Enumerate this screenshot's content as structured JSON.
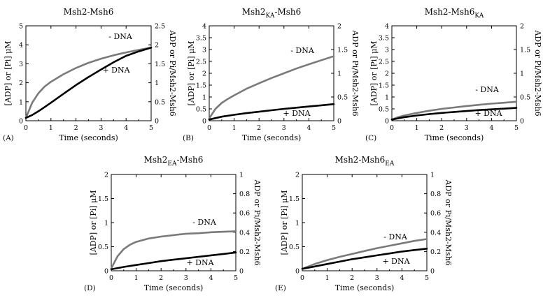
{
  "chart_data": [
    {
      "type": "line",
      "panel_label": "(A)",
      "title": {
        "main": "Msh2-Msh6",
        "sub": "",
        "suffix": ""
      },
      "xlabel": "Time (seconds)",
      "ylabel": "[ADP] or [Pi] μM",
      "y2label": "ADP or Pi/Msh2-Msh6",
      "xlim": [
        0,
        5
      ],
      "ylim": [
        0,
        5
      ],
      "y2lim": [
        0,
        2.5
      ],
      "xticks": [
        "0",
        "1",
        "2",
        "3",
        "4",
        "5"
      ],
      "yticks": [
        "0",
        "1",
        "2",
        "3",
        "4",
        "5"
      ],
      "y2ticks": [
        "0",
        "0.5",
        "1",
        "1.5",
        "2",
        "2.5"
      ],
      "series": [
        {
          "name": "- DNA",
          "color": "#7a7a7a",
          "x": [
            0,
            0.25,
            0.5,
            0.75,
            1,
            1.5,
            2,
            2.5,
            3,
            3.5,
            4,
            4.5,
            5
          ],
          "y": [
            0.15,
            0.95,
            1.45,
            1.8,
            2.05,
            2.45,
            2.78,
            3.05,
            3.27,
            3.45,
            3.6,
            3.73,
            3.85
          ]
        },
        {
          "name": "+ DNA",
          "color": "#000000",
          "x": [
            0,
            0.25,
            0.5,
            0.75,
            1,
            1.5,
            2,
            2.5,
            3,
            3.5,
            4,
            4.5,
            5
          ],
          "y": [
            0.15,
            0.3,
            0.5,
            0.72,
            0.95,
            1.42,
            1.88,
            2.3,
            2.7,
            3.08,
            3.42,
            3.65,
            3.85
          ]
        }
      ]
    },
    {
      "type": "line",
      "panel_label": "(B)",
      "title": {
        "main": "Msh2",
        "sub": "KA",
        "suffix": "-Msh6"
      },
      "xlabel": "Time (seconds)",
      "ylabel": "[ADP] or [Pi] μM",
      "y2label": "ADP or Pi/Msh2-Msh6",
      "xlim": [
        0,
        5
      ],
      "ylim": [
        0,
        4
      ],
      "y2lim": [
        0,
        2
      ],
      "xticks": [
        "0",
        "1",
        "2",
        "3",
        "4",
        "5"
      ],
      "yticks": [
        "0",
        "0.5",
        "1",
        "1.5",
        "2",
        "2.5",
        "3",
        "3.5",
        "4"
      ],
      "y2ticks": [
        "0",
        "0.5",
        "1",
        "1.5",
        "2"
      ],
      "series": [
        {
          "name": "- DNA",
          "color": "#7a7a7a",
          "x": [
            0,
            0.25,
            0.5,
            0.75,
            1,
            1.5,
            2,
            2.5,
            3,
            3.5,
            4,
            4.5,
            5
          ],
          "y": [
            0.1,
            0.5,
            0.75,
            0.92,
            1.07,
            1.35,
            1.58,
            1.8,
            2.0,
            2.2,
            2.38,
            2.55,
            2.72
          ]
        },
        {
          "name": "+ DNA",
          "color": "#000000",
          "x": [
            0,
            0.5,
            1,
            1.5,
            2,
            2.5,
            3,
            3.5,
            4,
            4.5,
            5
          ],
          "y": [
            0.05,
            0.17,
            0.25,
            0.32,
            0.38,
            0.44,
            0.5,
            0.55,
            0.6,
            0.65,
            0.7
          ]
        }
      ]
    },
    {
      "type": "line",
      "panel_label": "(C)",
      "title": {
        "main": "Msh2-Msh6",
        "sub": "KA",
        "suffix": ""
      },
      "xlabel": "Time (seconds)",
      "ylabel": "[ADP] or [Pi] μM",
      "y2label": "ADP or Pi/Msh2-Msh6",
      "xlim": [
        0,
        5
      ],
      "ylim": [
        0,
        4
      ],
      "y2lim": [
        0,
        2
      ],
      "xticks": [
        "0",
        "1",
        "2",
        "3",
        "4",
        "5"
      ],
      "yticks": [
        "0",
        "0.5",
        "1",
        "1.5",
        "2",
        "2.5",
        "3",
        "3.5",
        "4"
      ],
      "y2ticks": [
        "0",
        "0.5",
        "1",
        "1.5",
        "2"
      ],
      "series": [
        {
          "name": "- DNA",
          "color": "#7a7a7a",
          "x": [
            0,
            0.25,
            0.5,
            1,
            1.5,
            2,
            2.5,
            3,
            3.5,
            4,
            4.5,
            5
          ],
          "y": [
            0.05,
            0.15,
            0.22,
            0.33,
            0.42,
            0.5,
            0.56,
            0.62,
            0.67,
            0.72,
            0.76,
            0.8
          ]
        },
        {
          "name": "+ DNA",
          "color": "#000000",
          "x": [
            0,
            0.25,
            0.5,
            1,
            1.5,
            2,
            2.5,
            3,
            3.5,
            4,
            4.5,
            5
          ],
          "y": [
            0.05,
            0.1,
            0.15,
            0.22,
            0.28,
            0.33,
            0.37,
            0.41,
            0.45,
            0.48,
            0.51,
            0.54
          ]
        }
      ]
    },
    {
      "type": "line",
      "panel_label": "(D)",
      "title": {
        "main": "Msh2",
        "sub": "EA",
        "suffix": "-Msh6"
      },
      "xlabel": "Time (seconds)",
      "ylabel": "[ADP] or [Pi] μM",
      "y2label": "ADP or Pi/Msh2-Msh6",
      "xlim": [
        0,
        5
      ],
      "ylim": [
        0,
        2
      ],
      "y2lim": [
        0,
        1
      ],
      "xticks": [
        "0",
        "1",
        "2",
        "3",
        "4",
        "5"
      ],
      "yticks": [
        "0",
        "0.5",
        "1",
        "1.5",
        "2"
      ],
      "y2ticks": [
        "0",
        "0.2",
        "0.4",
        "0.6",
        "0.8",
        "1"
      ],
      "series": [
        {
          "name": "- DNA",
          "color": "#7a7a7a",
          "x": [
            0,
            0.25,
            0.5,
            0.75,
            1,
            1.5,
            2,
            2.5,
            3,
            3.5,
            4,
            4.5,
            5
          ],
          "y": [
            0.05,
            0.3,
            0.45,
            0.54,
            0.6,
            0.67,
            0.71,
            0.74,
            0.77,
            0.78,
            0.8,
            0.81,
            0.82
          ]
        },
        {
          "name": "+ DNA",
          "color": "#000000",
          "x": [
            0,
            0.5,
            1,
            1.5,
            2,
            2.5,
            3,
            3.5,
            4,
            4.5,
            5
          ],
          "y": [
            0.03,
            0.08,
            0.12,
            0.16,
            0.2,
            0.23,
            0.26,
            0.29,
            0.32,
            0.35,
            0.38
          ]
        }
      ]
    },
    {
      "type": "line",
      "panel_label": "(E)",
      "title": {
        "main": "Msh2-Msh6",
        "sub": "EA",
        "suffix": ""
      },
      "xlabel": "Time (seconds)",
      "ylabel": "[ADP] or [Pi] μM",
      "y2label": "ADP or Pi/Msh2-Msh6",
      "xlim": [
        0,
        5
      ],
      "ylim": [
        0,
        2
      ],
      "y2lim": [
        0,
        1
      ],
      "xticks": [
        "0",
        "1",
        "2",
        "3",
        "4",
        "5"
      ],
      "yticks": [
        "0",
        "0.5",
        "1",
        "1.5",
        "2"
      ],
      "y2ticks": [
        "0",
        "0.2",
        "0.4",
        "0.6",
        "0.8",
        "1"
      ],
      "series": [
        {
          "name": "- DNA",
          "color": "#7a7a7a",
          "x": [
            0,
            0.5,
            1,
            1.5,
            2,
            2.5,
            3,
            3.5,
            4,
            4.5,
            5
          ],
          "y": [
            0.04,
            0.14,
            0.22,
            0.29,
            0.35,
            0.41,
            0.47,
            0.52,
            0.57,
            0.62,
            0.66
          ]
        },
        {
          "name": "+ DNA",
          "color": "#000000",
          "x": [
            0,
            0.5,
            1,
            1.5,
            2,
            2.5,
            3,
            3.5,
            4,
            4.5,
            5
          ],
          "y": [
            0.04,
            0.09,
            0.14,
            0.19,
            0.24,
            0.28,
            0.32,
            0.36,
            0.4,
            0.43,
            0.46
          ]
        }
      ]
    }
  ]
}
